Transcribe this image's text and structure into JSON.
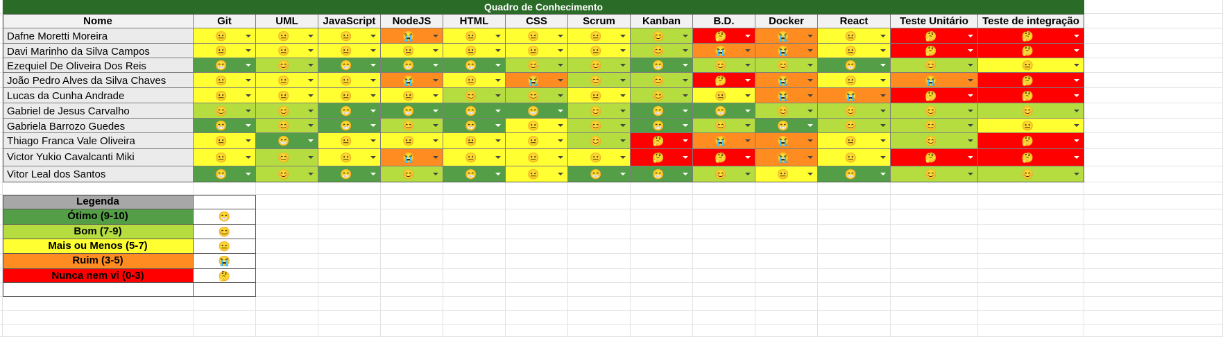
{
  "title": "Quadro de Conhecimento",
  "columns": {
    "name_header": "Nome",
    "skills": [
      "Git",
      "UML",
      "JavaScript",
      "NodeJS",
      "HTML",
      "CSS",
      "Scrum",
      "Kanban",
      "B.D.",
      "Docker",
      "React",
      "Teste Unitário",
      "Teste de integração"
    ]
  },
  "levels": {
    "otimo": {
      "label": "Ótimo (9-10)",
      "icon": "grin-icon",
      "glyph": "😁",
      "color": "#549e47"
    },
    "bom": {
      "label": "Bom (7-9)",
      "icon": "smile-icon",
      "glyph": "😊",
      "color": "#b6dd40"
    },
    "mais": {
      "label": "Mais ou Menos (5-7)",
      "icon": "neutral-face-icon",
      "glyph": "😐",
      "color": "#ffff32"
    },
    "ruim": {
      "label": "Ruim (3-5)",
      "icon": "crying-face-icon",
      "glyph": "😭",
      "color": "#ff8c21"
    },
    "nunca": {
      "label": "Nunca nem vi (0-3)",
      "icon": "thinking-face-icon",
      "glyph": "🤔",
      "color": "#ff0000"
    }
  },
  "people": [
    {
      "name": "Dafne Moretti Moreira",
      "ratings": [
        "mais",
        "mais",
        "mais",
        "ruim",
        "mais",
        "mais",
        "mais",
        "bom",
        "nunca",
        "ruim",
        "mais",
        "nunca",
        "nunca"
      ]
    },
    {
      "name": "Davi Marinho da Silva Campos",
      "ratings": [
        "mais",
        "mais",
        "mais",
        "mais",
        "mais",
        "mais",
        "mais",
        "bom",
        "ruim",
        "ruim",
        "mais",
        "nunca",
        "nunca"
      ]
    },
    {
      "name": "Ezequiel De Oliveira Dos Reis",
      "ratings": [
        "otimo",
        "bom",
        "otimo",
        "otimo",
        "otimo",
        "bom",
        "bom",
        "otimo",
        "bom",
        "bom",
        "otimo",
        "bom",
        "mais"
      ]
    },
    {
      "name": "João Pedro Alves da Silva Chaves",
      "ratings": [
        "mais",
        "mais",
        "mais",
        "ruim",
        "mais",
        "ruim",
        "bom",
        "bom",
        "nunca",
        "ruim",
        "mais",
        "ruim",
        "nunca"
      ]
    },
    {
      "name": "Lucas da Cunha Andrade",
      "ratings": [
        "mais",
        "mais",
        "mais",
        "mais",
        "bom",
        "bom",
        "mais",
        "bom",
        "mais",
        "ruim",
        "ruim",
        "nunca",
        "nunca"
      ]
    },
    {
      "name": "Gabriel de Jesus Carvalho",
      "ratings": [
        "bom",
        "bom",
        "otimo",
        "otimo",
        "otimo",
        "otimo",
        "bom",
        "otimo",
        "otimo",
        "bom",
        "bom",
        "bom",
        "bom"
      ]
    },
    {
      "name": "Gabriela Barrozo Guedes",
      "ratings": [
        "otimo",
        "bom",
        "otimo",
        "bom",
        "otimo",
        "mais",
        "bom",
        "otimo",
        "bom",
        "otimo",
        "bom",
        "bom",
        "mais"
      ]
    },
    {
      "name": "Thiago Franca Vale Oliveira",
      "ratings": [
        "mais",
        "otimo",
        "mais",
        "mais",
        "mais",
        "mais",
        "bom",
        "nunca",
        "ruim",
        "ruim",
        "mais",
        "bom",
        "nunca"
      ]
    },
    {
      "name": "Victor Yukio Cavalcanti Miki",
      "ratings": [
        "mais",
        "bom",
        "mais",
        "ruim",
        "mais",
        "mais",
        "mais",
        "nunca",
        "nunca",
        "ruim",
        "mais",
        "nunca",
        "nunca"
      ]
    },
    {
      "name": "Vitor Leal dos Santos",
      "ratings": [
        "otimo",
        "bom",
        "otimo",
        "bom",
        "otimo",
        "mais",
        "otimo",
        "otimo",
        "bom",
        "mais",
        "otimo",
        "bom",
        "bom"
      ]
    }
  ],
  "legend": {
    "title": "Legenda",
    "order": [
      "otimo",
      "bom",
      "mais",
      "ruim",
      "nunca"
    ]
  }
}
